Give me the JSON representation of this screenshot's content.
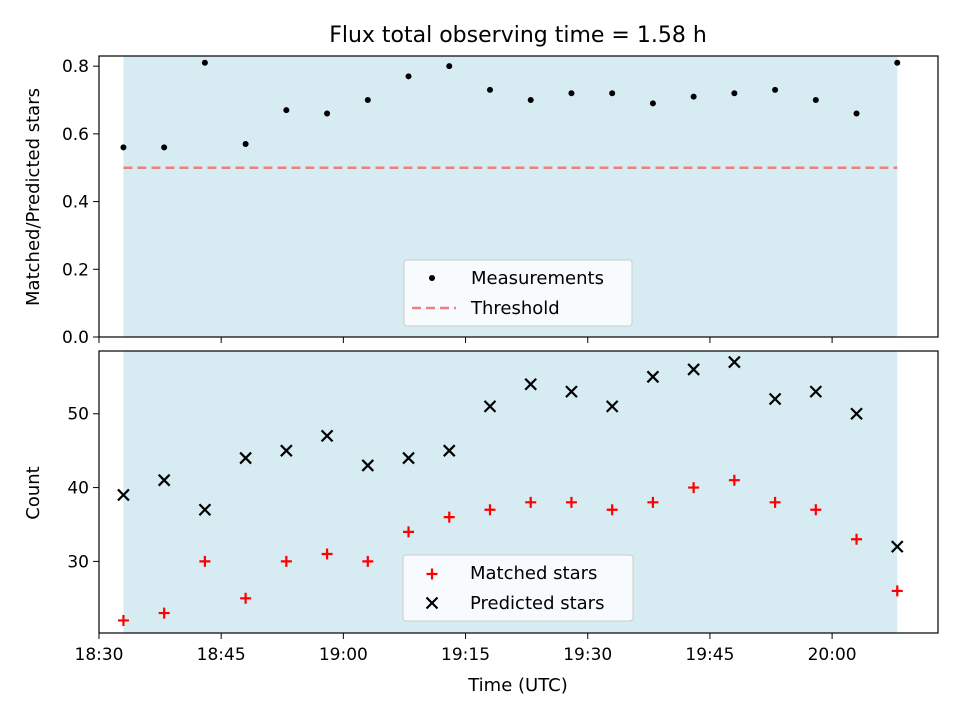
{
  "title": "Flux total observing time = 1.58 h",
  "xlabel": "Time (UTC)",
  "colors": {
    "shade": "#add8e6",
    "threshold": "#f08080",
    "matched": "#ff0000",
    "predicted": "#000000",
    "measurement": "#000000"
  },
  "chart_data": [
    {
      "type": "scatter",
      "ylabel": "Matched/Predicted stars",
      "ylim": [
        0,
        0.83
      ],
      "yticks": [
        0.0,
        0.2,
        0.4,
        0.6,
        0.8
      ],
      "ytick_labels": [
        "0.0",
        "0.2",
        "0.4",
        "0.6",
        "0.8"
      ],
      "shaded_span": [
        "18:33",
        "20:08"
      ],
      "times": [
        "18:33",
        "18:38",
        "18:43",
        "18:48",
        "18:53",
        "18:58",
        "19:03",
        "19:08",
        "19:13",
        "19:18",
        "19:23",
        "19:28",
        "19:33",
        "19:38",
        "19:43",
        "19:48",
        "19:53",
        "19:58",
        "20:03",
        "20:08"
      ],
      "series": [
        {
          "name": "Measurements",
          "marker": "dot",
          "values": [
            0.56,
            0.56,
            0.81,
            0.57,
            0.67,
            0.66,
            0.7,
            0.77,
            0.8,
            0.73,
            0.7,
            0.72,
            0.72,
            0.69,
            0.71,
            0.72,
            0.73,
            0.7,
            0.66,
            0.81
          ]
        },
        {
          "name": "Threshold",
          "marker": "dashed-line",
          "values": [
            0.5,
            0.5
          ]
        }
      ],
      "legend": "lower-center"
    },
    {
      "type": "scatter",
      "ylabel": "Count",
      "ylim": [
        20.3,
        58.5
      ],
      "yticks": [
        30,
        40,
        50
      ],
      "ytick_labels": [
        "30",
        "40",
        "50"
      ],
      "xlim": [
        "18:30",
        "20:13"
      ],
      "xticks": [
        "18:30",
        "18:45",
        "19:00",
        "19:15",
        "19:30",
        "19:45",
        "20:00"
      ],
      "xtick_labels": [
        "18:30",
        "18:45",
        "19:00",
        "19:15",
        "19:30",
        "19:45",
        "20:00"
      ],
      "shaded_span": [
        "18:33",
        "20:08"
      ],
      "times": [
        "18:33",
        "18:38",
        "18:43",
        "18:48",
        "18:53",
        "18:58",
        "19:03",
        "19:08",
        "19:13",
        "19:18",
        "19:23",
        "19:28",
        "19:33",
        "19:38",
        "19:43",
        "19:48",
        "19:53",
        "19:58",
        "20:03",
        "20:08"
      ],
      "series": [
        {
          "name": "Matched stars",
          "marker": "plus",
          "values": [
            22,
            23,
            30,
            25,
            30,
            31,
            30,
            34,
            36,
            37,
            38,
            38,
            37,
            38,
            40,
            41,
            38,
            37,
            33,
            26
          ]
        },
        {
          "name": "Predicted stars",
          "marker": "x",
          "values": [
            39,
            41,
            37,
            44,
            45,
            47,
            43,
            44,
            45,
            51,
            54,
            53,
            51,
            55,
            56,
            57,
            52,
            53,
            50,
            32
          ]
        }
      ],
      "legend": "lower-center"
    }
  ]
}
